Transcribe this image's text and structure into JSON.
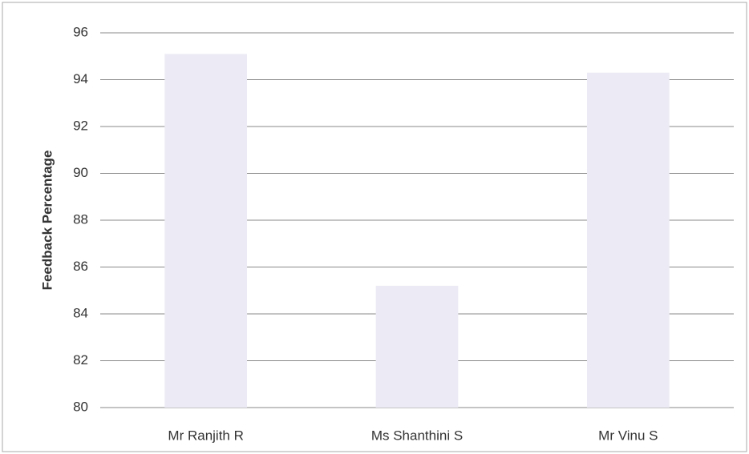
{
  "chart_data": {
    "type": "bar",
    "y_label": "Feedback Percentage",
    "categories": [
      "Mr Ranjith R",
      "Ms Shanthini S",
      "Mr Vinu S"
    ],
    "values": [
      95.1,
      85.2,
      94.3
    ],
    "color": "#ecebf5",
    "ylim": [
      80,
      96
    ],
    "yticks": [
      80,
      82,
      84,
      86,
      88,
      90,
      92,
      94,
      96
    ],
    "grid": true
  }
}
